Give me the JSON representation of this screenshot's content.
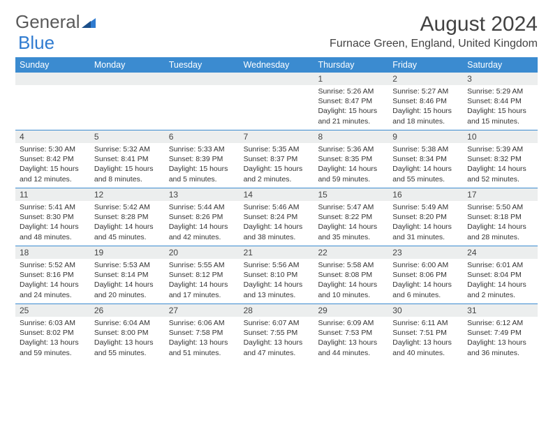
{
  "logo": {
    "text1": "General",
    "text2": "Blue"
  },
  "title": "August 2024",
  "location": "Furnace Green, England, United Kingdom",
  "colors": {
    "header_bg": "#3b8bd0",
    "header_text": "#ffffff",
    "daynum_bg": "#eceeee",
    "rule": "#3b8bd0",
    "logo_accent": "#2f7bd0",
    "text": "#333333"
  },
  "weekdays": [
    "Sunday",
    "Monday",
    "Tuesday",
    "Wednesday",
    "Thursday",
    "Friday",
    "Saturday"
  ],
  "weeks": [
    [
      {
        "n": "",
        "sr": "",
        "ss": "",
        "dl": ""
      },
      {
        "n": "",
        "sr": "",
        "ss": "",
        "dl": ""
      },
      {
        "n": "",
        "sr": "",
        "ss": "",
        "dl": ""
      },
      {
        "n": "",
        "sr": "",
        "ss": "",
        "dl": ""
      },
      {
        "n": "1",
        "sr": "Sunrise: 5:26 AM",
        "ss": "Sunset: 8:47 PM",
        "dl": "Daylight: 15 hours and 21 minutes."
      },
      {
        "n": "2",
        "sr": "Sunrise: 5:27 AM",
        "ss": "Sunset: 8:46 PM",
        "dl": "Daylight: 15 hours and 18 minutes."
      },
      {
        "n": "3",
        "sr": "Sunrise: 5:29 AM",
        "ss": "Sunset: 8:44 PM",
        "dl": "Daylight: 15 hours and 15 minutes."
      }
    ],
    [
      {
        "n": "4",
        "sr": "Sunrise: 5:30 AM",
        "ss": "Sunset: 8:42 PM",
        "dl": "Daylight: 15 hours and 12 minutes."
      },
      {
        "n": "5",
        "sr": "Sunrise: 5:32 AM",
        "ss": "Sunset: 8:41 PM",
        "dl": "Daylight: 15 hours and 8 minutes."
      },
      {
        "n": "6",
        "sr": "Sunrise: 5:33 AM",
        "ss": "Sunset: 8:39 PM",
        "dl": "Daylight: 15 hours and 5 minutes."
      },
      {
        "n": "7",
        "sr": "Sunrise: 5:35 AM",
        "ss": "Sunset: 8:37 PM",
        "dl": "Daylight: 15 hours and 2 minutes."
      },
      {
        "n": "8",
        "sr": "Sunrise: 5:36 AM",
        "ss": "Sunset: 8:35 PM",
        "dl": "Daylight: 14 hours and 59 minutes."
      },
      {
        "n": "9",
        "sr": "Sunrise: 5:38 AM",
        "ss": "Sunset: 8:34 PM",
        "dl": "Daylight: 14 hours and 55 minutes."
      },
      {
        "n": "10",
        "sr": "Sunrise: 5:39 AM",
        "ss": "Sunset: 8:32 PM",
        "dl": "Daylight: 14 hours and 52 minutes."
      }
    ],
    [
      {
        "n": "11",
        "sr": "Sunrise: 5:41 AM",
        "ss": "Sunset: 8:30 PM",
        "dl": "Daylight: 14 hours and 48 minutes."
      },
      {
        "n": "12",
        "sr": "Sunrise: 5:42 AM",
        "ss": "Sunset: 8:28 PM",
        "dl": "Daylight: 14 hours and 45 minutes."
      },
      {
        "n": "13",
        "sr": "Sunrise: 5:44 AM",
        "ss": "Sunset: 8:26 PM",
        "dl": "Daylight: 14 hours and 42 minutes."
      },
      {
        "n": "14",
        "sr": "Sunrise: 5:46 AM",
        "ss": "Sunset: 8:24 PM",
        "dl": "Daylight: 14 hours and 38 minutes."
      },
      {
        "n": "15",
        "sr": "Sunrise: 5:47 AM",
        "ss": "Sunset: 8:22 PM",
        "dl": "Daylight: 14 hours and 35 minutes."
      },
      {
        "n": "16",
        "sr": "Sunrise: 5:49 AM",
        "ss": "Sunset: 8:20 PM",
        "dl": "Daylight: 14 hours and 31 minutes."
      },
      {
        "n": "17",
        "sr": "Sunrise: 5:50 AM",
        "ss": "Sunset: 8:18 PM",
        "dl": "Daylight: 14 hours and 28 minutes."
      }
    ],
    [
      {
        "n": "18",
        "sr": "Sunrise: 5:52 AM",
        "ss": "Sunset: 8:16 PM",
        "dl": "Daylight: 14 hours and 24 minutes."
      },
      {
        "n": "19",
        "sr": "Sunrise: 5:53 AM",
        "ss": "Sunset: 8:14 PM",
        "dl": "Daylight: 14 hours and 20 minutes."
      },
      {
        "n": "20",
        "sr": "Sunrise: 5:55 AM",
        "ss": "Sunset: 8:12 PM",
        "dl": "Daylight: 14 hours and 17 minutes."
      },
      {
        "n": "21",
        "sr": "Sunrise: 5:56 AM",
        "ss": "Sunset: 8:10 PM",
        "dl": "Daylight: 14 hours and 13 minutes."
      },
      {
        "n": "22",
        "sr": "Sunrise: 5:58 AM",
        "ss": "Sunset: 8:08 PM",
        "dl": "Daylight: 14 hours and 10 minutes."
      },
      {
        "n": "23",
        "sr": "Sunrise: 6:00 AM",
        "ss": "Sunset: 8:06 PM",
        "dl": "Daylight: 14 hours and 6 minutes."
      },
      {
        "n": "24",
        "sr": "Sunrise: 6:01 AM",
        "ss": "Sunset: 8:04 PM",
        "dl": "Daylight: 14 hours and 2 minutes."
      }
    ],
    [
      {
        "n": "25",
        "sr": "Sunrise: 6:03 AM",
        "ss": "Sunset: 8:02 PM",
        "dl": "Daylight: 13 hours and 59 minutes."
      },
      {
        "n": "26",
        "sr": "Sunrise: 6:04 AM",
        "ss": "Sunset: 8:00 PM",
        "dl": "Daylight: 13 hours and 55 minutes."
      },
      {
        "n": "27",
        "sr": "Sunrise: 6:06 AM",
        "ss": "Sunset: 7:58 PM",
        "dl": "Daylight: 13 hours and 51 minutes."
      },
      {
        "n": "28",
        "sr": "Sunrise: 6:07 AM",
        "ss": "Sunset: 7:55 PM",
        "dl": "Daylight: 13 hours and 47 minutes."
      },
      {
        "n": "29",
        "sr": "Sunrise: 6:09 AM",
        "ss": "Sunset: 7:53 PM",
        "dl": "Daylight: 13 hours and 44 minutes."
      },
      {
        "n": "30",
        "sr": "Sunrise: 6:11 AM",
        "ss": "Sunset: 7:51 PM",
        "dl": "Daylight: 13 hours and 40 minutes."
      },
      {
        "n": "31",
        "sr": "Sunrise: 6:12 AM",
        "ss": "Sunset: 7:49 PM",
        "dl": "Daylight: 13 hours and 36 minutes."
      }
    ]
  ]
}
